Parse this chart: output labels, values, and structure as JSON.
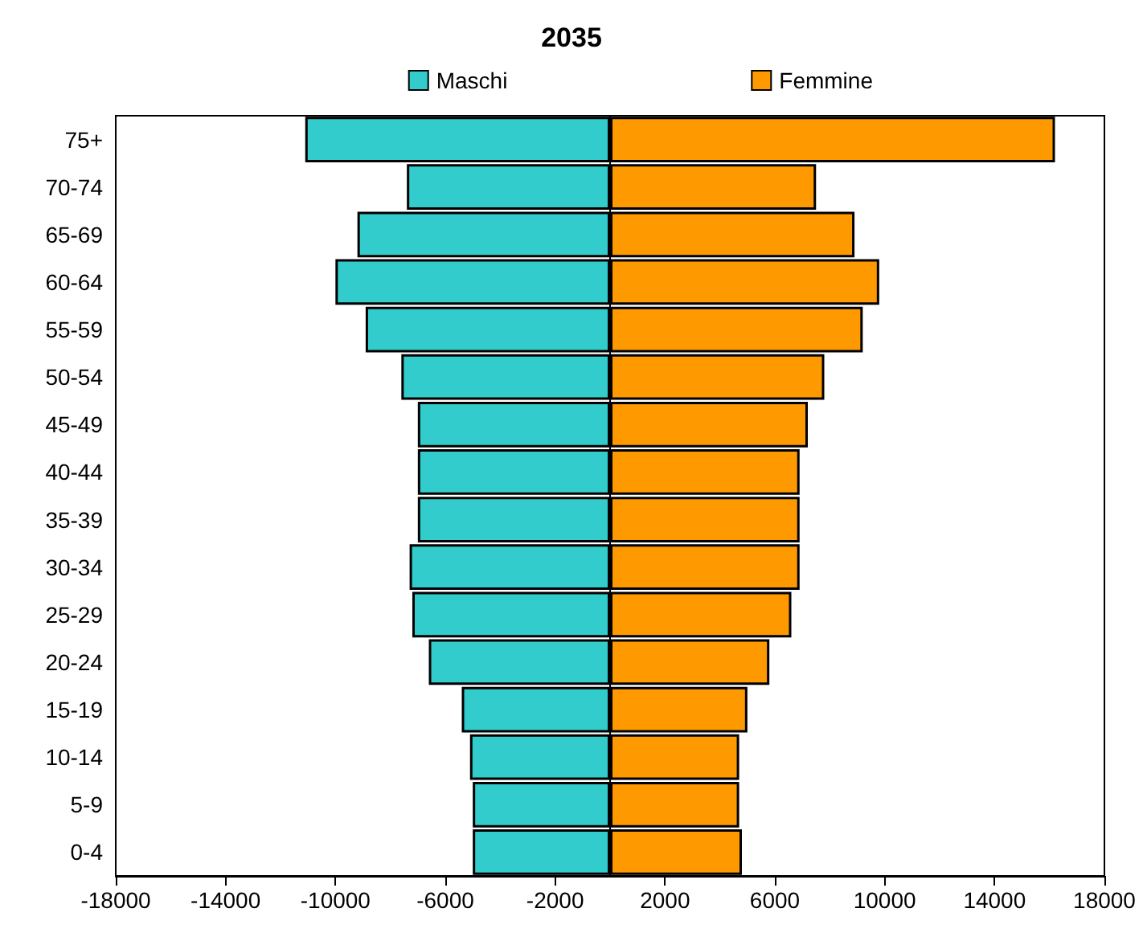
{
  "chart_data": {
    "type": "bar",
    "orientation": "horizontal",
    "title": "2035",
    "categories": [
      "75+",
      "70-74",
      "65-69",
      "60-64",
      "55-59",
      "50-54",
      "45-49",
      "40-44",
      "35-39",
      "30-34",
      "25-29",
      "20-24",
      "15-19",
      "10-14",
      "5-9",
      "0-4"
    ],
    "series": [
      {
        "name": "Maschi",
        "color": "#33cccc",
        "values": [
          -11100,
          -7400,
          -9200,
          -10000,
          -8900,
          -7600,
          -7000,
          -7000,
          -7000,
          -7300,
          -7200,
          -6600,
          -5400,
          -5100,
          -5000,
          -5000
        ]
      },
      {
        "name": "Femmine",
        "color": "#ff9900",
        "values": [
          16200,
          7500,
          8900,
          9800,
          9200,
          7800,
          7200,
          6900,
          6900,
          6900,
          6600,
          5800,
          5000,
          4700,
          4700,
          4800
        ]
      }
    ],
    "xlim": [
      -18000,
      18000
    ],
    "xticks": [
      -18000,
      -14000,
      -10000,
      -6000,
      -2000,
      2000,
      6000,
      10000,
      14000,
      18000
    ],
    "stacked": true,
    "grid": false,
    "legend": "top"
  }
}
